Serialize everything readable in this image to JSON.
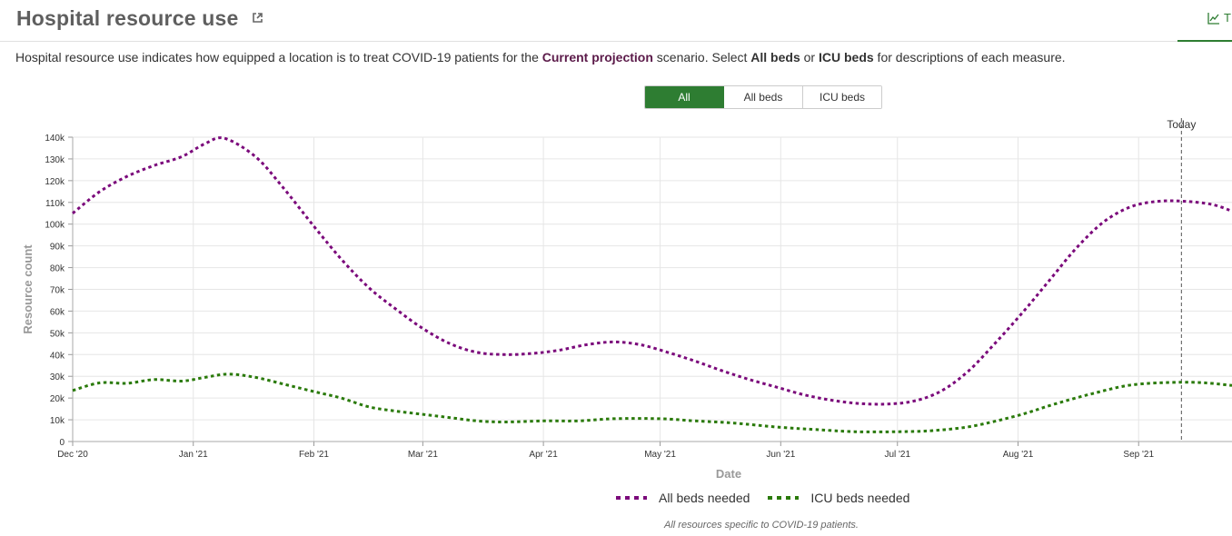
{
  "header": {
    "title": "Hospital resource use",
    "tab_label": "T"
  },
  "description": {
    "part1": "Hospital resource use indicates how equipped a location is to treat COVID-19 patients for the ",
    "scenario": "Current projection",
    "part2": " scenario. Select ",
    "all_beds": "All beds",
    "part3": " or ",
    "icu_beds": "ICU beds",
    "part4": " for descriptions of each measure."
  },
  "toggle": {
    "options": [
      "All",
      "All beds",
      "ICU beds"
    ],
    "selected": "All"
  },
  "colors": {
    "all_beds": "#7b0a7b",
    "icu_beds": "#2a7a0a",
    "accent": "#2e7d32",
    "grid": "#e6e6e6"
  },
  "footnote": "All resources specific to COVID-19 patients.",
  "chart_data": {
    "type": "line",
    "xlabel": "Date",
    "ylabel": "Resource count",
    "ylim": [
      0,
      140000
    ],
    "yticks": [
      0,
      10000,
      20000,
      30000,
      40000,
      50000,
      60000,
      70000,
      80000,
      90000,
      100000,
      110000,
      120000,
      130000,
      140000
    ],
    "ytick_labels": [
      "0",
      "10k",
      "20k",
      "30k",
      "40k",
      "50k",
      "60k",
      "70k",
      "80k",
      "90k",
      "100k",
      "110k",
      "120k",
      "130k",
      "140k"
    ],
    "xlim": [
      "2020-12-01",
      "2021-09-25"
    ],
    "xticks": [
      "2020-12-01",
      "2021-01-01",
      "2021-02-01",
      "2021-03-01",
      "2021-04-01",
      "2021-05-01",
      "2021-06-01",
      "2021-07-01",
      "2021-08-01",
      "2021-09-01"
    ],
    "xtick_labels": [
      "Dec '20",
      "Jan '21",
      "Feb '21",
      "Mar '21",
      "Apr '21",
      "May '21",
      "Jun '21",
      "Jul '21",
      "Aug '21",
      "Sep '21"
    ],
    "grid": true,
    "today": {
      "label": "Today",
      "date": "2021-09-12"
    },
    "legend_position": "bottom",
    "series": [
      {
        "name": "All beds needed",
        "color": "#7b0a7b",
        "dash": "dotted",
        "points": [
          [
            "2020-12-01",
            105000
          ],
          [
            "2020-12-08",
            115000
          ],
          [
            "2020-12-15",
            122000
          ],
          [
            "2020-12-22",
            127000
          ],
          [
            "2020-12-29",
            131000
          ],
          [
            "2021-01-04",
            137000
          ],
          [
            "2021-01-09",
            139500
          ],
          [
            "2021-01-17",
            131000
          ],
          [
            "2021-01-24",
            117000
          ],
          [
            "2021-02-01",
            99000
          ],
          [
            "2021-02-08",
            84000
          ],
          [
            "2021-02-15",
            71000
          ],
          [
            "2021-02-22",
            61000
          ],
          [
            "2021-03-01",
            52000
          ],
          [
            "2021-03-08",
            45000
          ],
          [
            "2021-03-15",
            41000
          ],
          [
            "2021-03-22",
            40000
          ],
          [
            "2021-03-29",
            40500
          ],
          [
            "2021-04-05",
            42000
          ],
          [
            "2021-04-12",
            44500
          ],
          [
            "2021-04-19",
            45800
          ],
          [
            "2021-04-26",
            44500
          ],
          [
            "2021-05-03",
            41000
          ],
          [
            "2021-05-10",
            37000
          ],
          [
            "2021-05-17",
            32500
          ],
          [
            "2021-05-24",
            28500
          ],
          [
            "2021-05-31",
            25000
          ],
          [
            "2021-06-07",
            21500
          ],
          [
            "2021-06-14",
            19000
          ],
          [
            "2021-06-21",
            17500
          ],
          [
            "2021-06-28",
            17200
          ],
          [
            "2021-07-05",
            18500
          ],
          [
            "2021-07-12",
            23000
          ],
          [
            "2021-07-19",
            32000
          ],
          [
            "2021-07-26",
            45000
          ],
          [
            "2021-08-02",
            59000
          ],
          [
            "2021-08-09",
            74000
          ],
          [
            "2021-08-16",
            89000
          ],
          [
            "2021-08-23",
            101000
          ],
          [
            "2021-08-30",
            108000
          ],
          [
            "2021-09-06",
            110500
          ],
          [
            "2021-09-13",
            110500
          ],
          [
            "2021-09-20",
            109000
          ],
          [
            "2021-09-25",
            106000
          ]
        ]
      },
      {
        "name": "ICU beds needed",
        "color": "#2a7a0a",
        "dash": "dotted",
        "points": [
          [
            "2020-12-01",
            23500
          ],
          [
            "2020-12-08",
            27000
          ],
          [
            "2020-12-15",
            26800
          ],
          [
            "2020-12-22",
            28500
          ],
          [
            "2020-12-29",
            27800
          ],
          [
            "2021-01-04",
            29500
          ],
          [
            "2021-01-10",
            31000
          ],
          [
            "2021-01-17",
            29500
          ],
          [
            "2021-01-24",
            26500
          ],
          [
            "2021-02-01",
            23000
          ],
          [
            "2021-02-08",
            20000
          ],
          [
            "2021-02-15",
            16000
          ],
          [
            "2021-02-22",
            14000
          ],
          [
            "2021-03-01",
            12500
          ],
          [
            "2021-03-08",
            11000
          ],
          [
            "2021-03-15",
            9500
          ],
          [
            "2021-03-22",
            9000
          ],
          [
            "2021-04-01",
            9500
          ],
          [
            "2021-04-10",
            9500
          ],
          [
            "2021-04-19",
            10500
          ],
          [
            "2021-05-01",
            10500
          ],
          [
            "2021-05-10",
            9500
          ],
          [
            "2021-05-20",
            8500
          ],
          [
            "2021-06-01",
            6500
          ],
          [
            "2021-06-10",
            5500
          ],
          [
            "2021-06-20",
            4500
          ],
          [
            "2021-07-01",
            4500
          ],
          [
            "2021-07-10",
            5000
          ],
          [
            "2021-07-20",
            7000
          ],
          [
            "2021-08-01",
            12000
          ],
          [
            "2021-08-10",
            17000
          ],
          [
            "2021-08-20",
            22000
          ],
          [
            "2021-08-30",
            26000
          ],
          [
            "2021-09-10",
            27200
          ],
          [
            "2021-09-18",
            27000
          ],
          [
            "2021-09-25",
            25800
          ]
        ]
      }
    ]
  }
}
